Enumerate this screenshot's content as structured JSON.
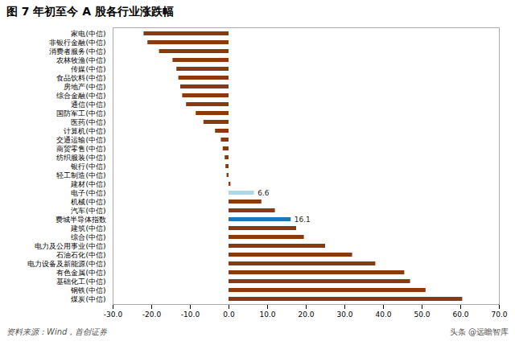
{
  "chart_data": {
    "type": "bar",
    "orientation": "horizontal",
    "title": "图 7  年初至今 A 股各行业涨跌幅",
    "categories": [
      "家电(中信)",
      "非银行金融(中信)",
      "消费者服务(中信)",
      "农林牧渔(中信)",
      "传媒(中信)",
      "食品饮料(中信)",
      "房地产(中信)",
      "综合金融(中信)",
      "通信(中信)",
      "国防军工(中信)",
      "医药(中信)",
      "计算机(中信)",
      "交通运输(中信)",
      "商贸零售(中信)",
      "纺织服装(中信)",
      "银行(中信)",
      "轻工制造(中信)",
      "建材(中信)",
      "电子(中信)",
      "机械(中信)",
      "汽车(中信)",
      "费城半导体指数",
      "建筑(中信)",
      "综合(中信)",
      "电力及公用事业(中信)",
      "石油石化(中信)",
      "电力设备及新能源(中信)",
      "有色金属(中信)",
      "基础化工(中信)",
      "钢铁(中信)",
      "煤炭(中信)"
    ],
    "values": [
      -22.0,
      -21.0,
      -18.0,
      -14.5,
      -13.5,
      -13.0,
      -12.5,
      -12.0,
      -11.0,
      -8.5,
      -6.5,
      -3.5,
      -2.0,
      -1.5,
      -1.0,
      -0.8,
      -0.5,
      0.5,
      6.6,
      8.5,
      12.0,
      16.1,
      17.5,
      19.5,
      25.0,
      32.0,
      38.0,
      45.5,
      47.0,
      51.0,
      60.5
    ],
    "colors": [
      "#8B3A0F",
      "#8B3A0F",
      "#8B3A0F",
      "#8B3A0F",
      "#8B3A0F",
      "#8B3A0F",
      "#8B3A0F",
      "#8B3A0F",
      "#8B3A0F",
      "#8B3A0F",
      "#8B3A0F",
      "#8B3A0F",
      "#8B3A0F",
      "#8B3A0F",
      "#8B3A0F",
      "#8B3A0F",
      "#8B3A0F",
      "#8B3A0F",
      "#ADD8E6",
      "#8B3A0F",
      "#8B3A0F",
      "#1F77B4",
      "#8B3A0F",
      "#8B3A0F",
      "#8B3A0F",
      "#8B3A0F",
      "#8B3A0F",
      "#8B3A0F",
      "#8B3A0F",
      "#8B3A0F",
      "#8B3A0F"
    ],
    "xlim": [
      -30,
      70
    ],
    "xticks": [
      {
        "value": -30,
        "label": "-30.0"
      },
      {
        "value": -20,
        "label": "-20.0"
      },
      {
        "value": -10,
        "label": "-10.0"
      },
      {
        "value": 0,
        "label": "0.0"
      },
      {
        "value": 10,
        "label": "10.0"
      },
      {
        "value": 20,
        "label": "20.0"
      },
      {
        "value": 30,
        "label": "30.0"
      },
      {
        "value": 40,
        "label": "40.0"
      },
      {
        "value": 50,
        "label": "50.0"
      },
      {
        "value": 60,
        "label": "60.0"
      },
      {
        "value": 70,
        "label": "70.0"
      }
    ],
    "annotations": [
      {
        "category": "电子(中信)",
        "value": 6.6,
        "text": "6.6"
      },
      {
        "category": "费城半导体指数",
        "value": 16.1,
        "text": "16.1"
      }
    ],
    "source": "资料来源：Wind，首创证券",
    "watermark": "头条 @远瞻智库"
  }
}
